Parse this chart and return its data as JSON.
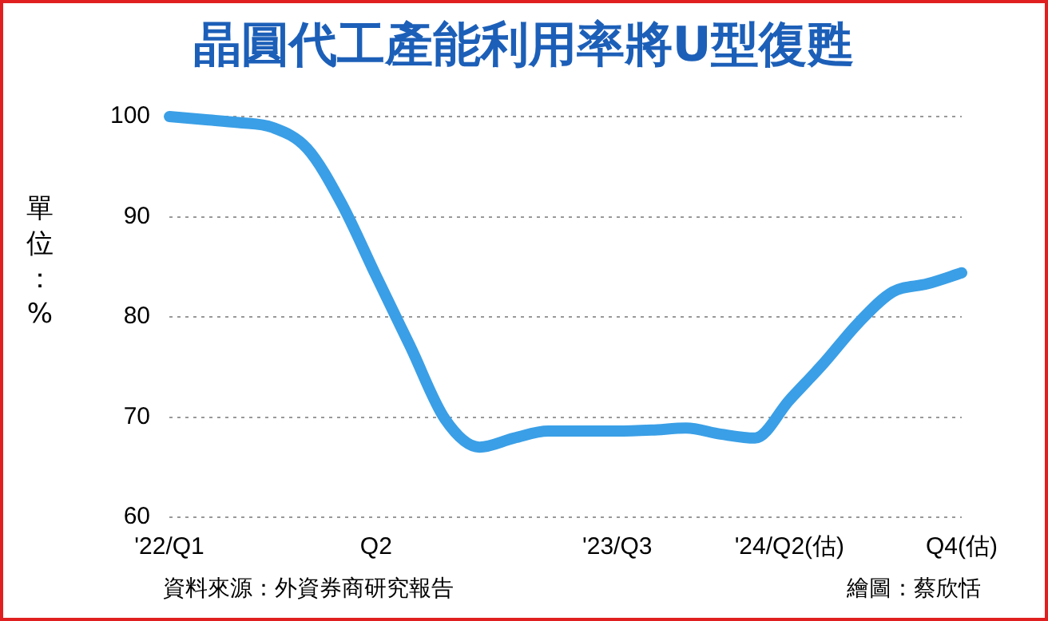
{
  "chart_data": {
    "type": "line",
    "title": "晶圓代工產能利用率將U型復甦",
    "ylabel": "單位：%",
    "categories": [
      "'22/Q1",
      null,
      null,
      null,
      null,
      null,
      "Q2",
      null,
      null,
      null,
      null,
      null,
      null,
      "'23/Q3",
      null,
      null,
      null,
      null,
      "'24/Q2(估)",
      null,
      null,
      null,
      null,
      "Q4(估)"
    ],
    "series": [
      {
        "color": "#3a9fe6",
        "values": [
          100,
          99.7,
          99.4,
          98.9,
          96.8,
          91.3,
          84.1,
          77,
          69.8,
          67,
          67.9,
          68.6,
          68.6,
          68.6,
          68.7,
          68.9,
          68.3,
          67.9,
          71.7,
          75.4,
          79.4,
          82.5,
          83.3,
          84.4
        ]
      }
    ],
    "ylim": [
      60,
      100
    ],
    "yticks": [
      60,
      70,
      80,
      90,
      100
    ],
    "grid": "y",
    "legend": false,
    "marker": "none",
    "line_style": "solid",
    "annotations": [
      "資料來源：外資券商研究報告",
      "繪圖：蔡欣恬"
    ]
  }
}
